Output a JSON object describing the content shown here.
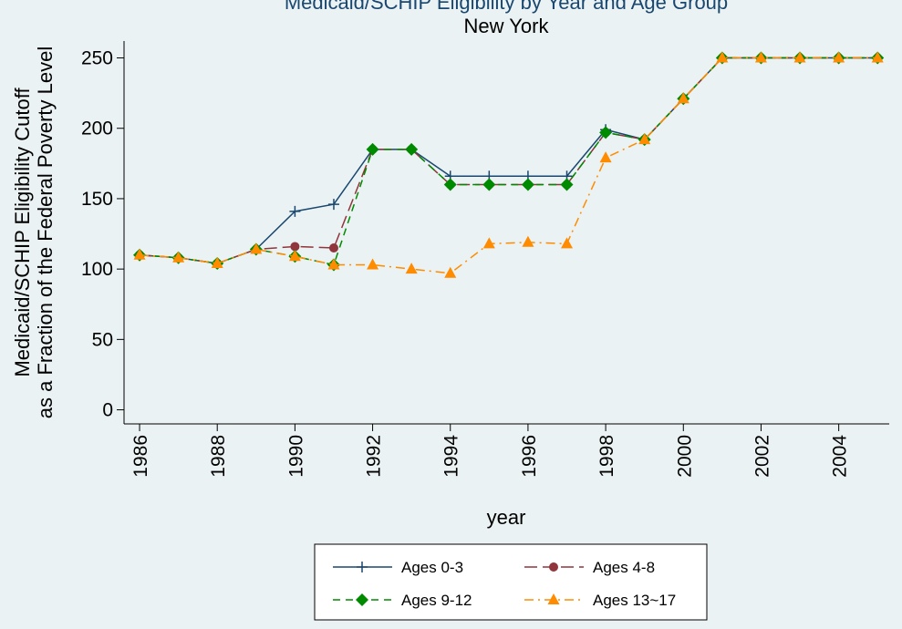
{
  "chart_data": {
    "type": "line",
    "title": "Medicaid/SCHIP Eligibility by Year and Age Group",
    "subtitle": "New York",
    "x_label": "year",
    "y_label": [
      "Medicaid/SCHIP Eligibility Cutoff",
      "as a Fraction of the Federal Poverty Level"
    ],
    "x": [
      1986,
      1987,
      1988,
      1989,
      1990,
      1991,
      1992,
      1993,
      1994,
      1995,
      1996,
      1997,
      1998,
      1999,
      2000,
      2001,
      2002,
      2003,
      2004,
      2005
    ],
    "series": [
      {
        "name": "Ages 0-3",
        "color": "#1a476f",
        "marker": "plus",
        "dash": "solid",
        "values": [
          110,
          108,
          104,
          114,
          141,
          146,
          185,
          185,
          166,
          166,
          166,
          166,
          199,
          192,
          221,
          250,
          250,
          250,
          250,
          250
        ]
      },
      {
        "name": "Ages 4-8",
        "color": "#90353b",
        "marker": "circle",
        "dash": "longdash",
        "values": [
          110,
          108,
          104,
          114,
          116,
          115,
          185,
          185,
          160,
          160,
          160,
          160,
          197,
          192,
          221,
          250,
          250,
          250,
          250,
          250
        ]
      },
      {
        "name": "Ages 9-12",
        "color": "#008a00",
        "marker": "diamond",
        "dash": "dash",
        "values": [
          110,
          108,
          104,
          114,
          109,
          103,
          185,
          185,
          160,
          160,
          160,
          160,
          197,
          192,
          221,
          250,
          250,
          250,
          250,
          250
        ]
      },
      {
        "name": "Ages 13~17",
        "color": "#ff8c00",
        "marker": "triangle",
        "dash": "dashdot",
        "values": [
          110,
          108,
          104,
          114,
          109,
          103,
          103,
          100,
          97,
          118,
          119,
          118,
          179,
          192,
          221,
          250,
          250,
          250,
          250,
          250
        ]
      }
    ],
    "xlim": [
      1985.6,
      2005.3
    ],
    "ylim": [
      -10,
      262
    ],
    "xticks": [
      1986,
      1988,
      1990,
      1992,
      1994,
      1996,
      1998,
      2000,
      2002,
      2004
    ],
    "yticks": [
      0,
      50,
      100,
      150,
      200,
      250
    ],
    "legend": "bottom"
  }
}
